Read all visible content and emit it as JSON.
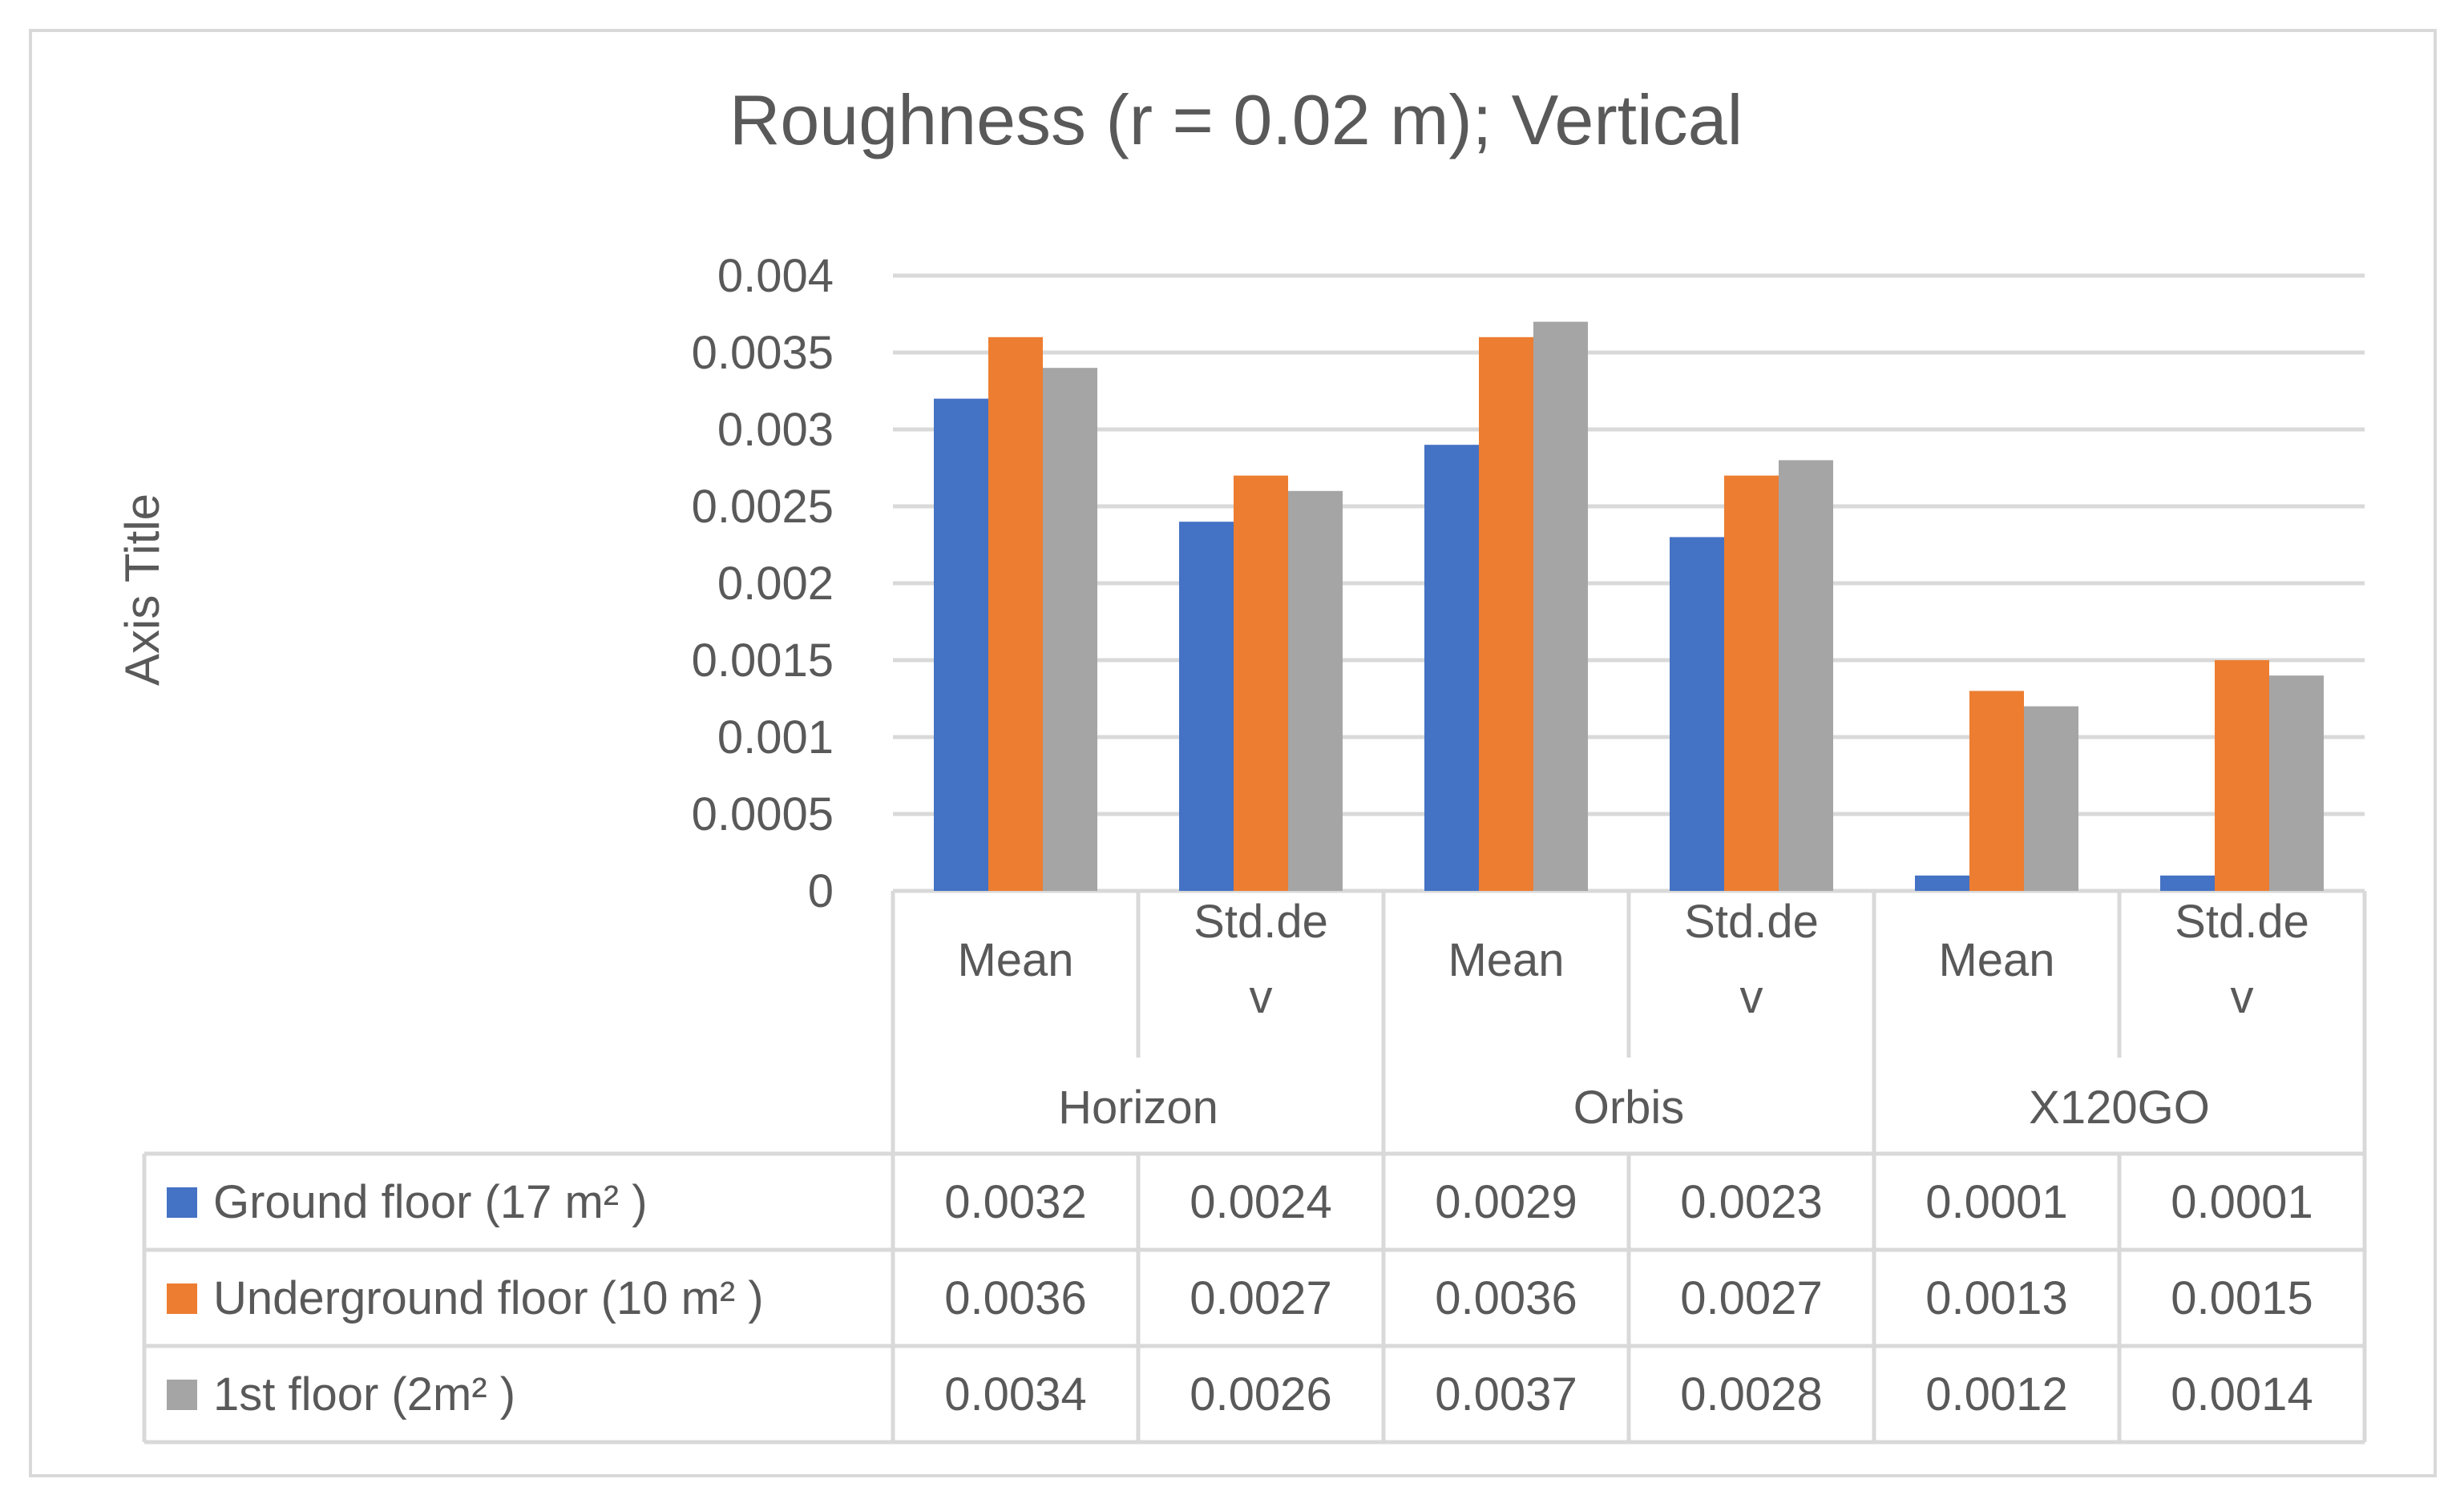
{
  "chart_data": {
    "type": "bar",
    "title": "Roughness (r = 0.02 m); Vertical",
    "ylabel": "Axis Title",
    "xlabel": "",
    "ylim": [
      0,
      0.004
    ],
    "yticks": [
      "0",
      "0.0005",
      "0.001",
      "0.0015",
      "0.002",
      "0.0025",
      "0.003",
      "0.0035",
      "0.004"
    ],
    "grid": true,
    "legend": "data-table",
    "groups": [
      {
        "name": "Horizon",
        "categories": [
          [
            "Mean"
          ],
          [
            "Std.de",
            "v"
          ]
        ]
      },
      {
        "name": "Orbis",
        "categories": [
          [
            "Mean"
          ],
          [
            "Std.de",
            "v"
          ]
        ]
      },
      {
        "name": "X120GO",
        "categories": [
          [
            "Mean"
          ],
          [
            "Std.de",
            "v"
          ]
        ]
      }
    ],
    "series": [
      {
        "name": "Ground floor (17 m² )",
        "color": "#4472c4",
        "values": [
          0.0032,
          0.0024,
          0.0029,
          0.0023,
          0.0001,
          0.0001
        ],
        "labels": [
          "0.0032",
          "0.0024",
          "0.0029",
          "0.0023",
          "0.0001",
          "0.0001"
        ]
      },
      {
        "name": "Underground floor (10 m² )",
        "color": "#ed7d31",
        "values": [
          0.0036,
          0.0027,
          0.0036,
          0.0027,
          0.0013,
          0.0015
        ],
        "labels": [
          "0.0036",
          "0.0027",
          "0.0036",
          "0.0027",
          "0.0013",
          "0.0015"
        ]
      },
      {
        "name": "1st floor (2m² )",
        "color": "#a5a5a5",
        "values": [
          0.0034,
          0.0026,
          0.0037,
          0.0028,
          0.0012,
          0.0014
        ],
        "labels": [
          "0.0034",
          "0.0026",
          "0.0037",
          "0.0028",
          "0.0012",
          "0.0014"
        ]
      }
    ]
  }
}
